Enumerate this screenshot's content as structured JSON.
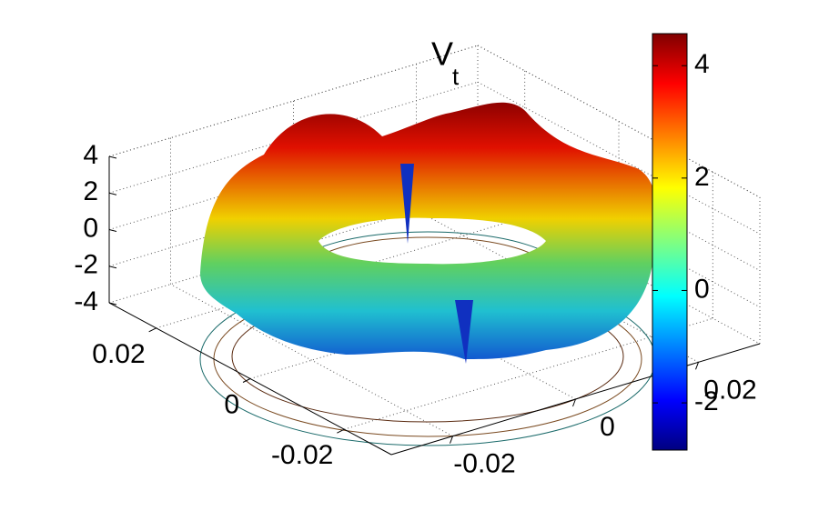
{
  "chart_data": {
    "type": "surface",
    "title": {
      "text": "V",
      "subscript": "t"
    },
    "xlim": [
      -0.03,
      0.03
    ],
    "xticks": [
      -0.02,
      0,
      0.02
    ],
    "ylim": [
      -0.03,
      0.03
    ],
    "yticks": [
      -0.02,
      0,
      0.02
    ],
    "zlim": [
      -4,
      4
    ],
    "zticks": [
      -4,
      -2,
      0,
      2,
      4
    ],
    "colorbar": {
      "clim": [
        -2.84,
        4.57
      ],
      "ticks": [
        -2,
        0,
        2,
        4
      ],
      "colormap": "jet"
    },
    "grid": true
  }
}
